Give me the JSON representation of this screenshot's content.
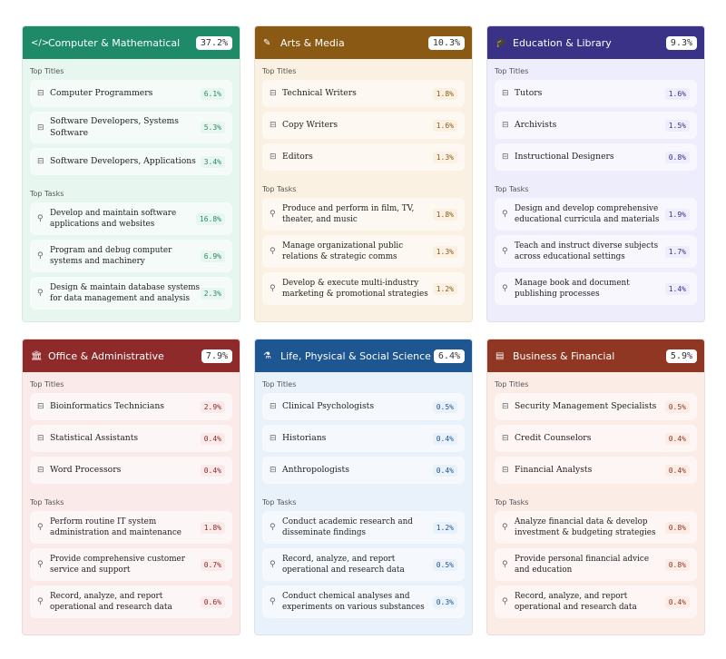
{
  "labels": {
    "titles": "Top Titles",
    "tasks": "Top Tasks"
  },
  "cards": [
    {
      "name": "Computer & Mathematical",
      "pct": "37.2%",
      "icon": "code-icon",
      "glyph": "</>",
      "color": "#1e8a68",
      "bg": "#e8f6f0",
      "val": "#2a8a6a",
      "titles": [
        {
          "l": "Computer Programmers",
          "v": "6.1%"
        },
        {
          "l": "Software Developers, Systems Software",
          "v": "5.3%"
        },
        {
          "l": "Software Developers, Applications",
          "v": "3.4%"
        }
      ],
      "tasks": [
        {
          "l": "Develop and maintain software applications and websites",
          "v": "16.8%"
        },
        {
          "l": "Program and debug computer systems and machinery",
          "v": "6.9%"
        },
        {
          "l": "Design & maintain database systems for data management and analysis",
          "v": "2.3%"
        }
      ]
    },
    {
      "name": "Arts & Media",
      "pct": "10.3%",
      "icon": "brush-icon",
      "glyph": "✎",
      "color": "#8a5a14",
      "bg": "#fbf1e2",
      "val": "#8a5a14",
      "titles": [
        {
          "l": "Technical Writers",
          "v": "1.8%"
        },
        {
          "l": "Copy Writers",
          "v": "1.6%"
        },
        {
          "l": "Editors",
          "v": "1.3%"
        }
      ],
      "tasks": [
        {
          "l": "Produce and perform in film, TV, theater, and music",
          "v": "1.8%"
        },
        {
          "l": "Manage organizational public relations & strategic comms",
          "v": "1.3%"
        },
        {
          "l": "Develop & execute multi-industry marketing & promotional strategies",
          "v": "1.2%"
        }
      ]
    },
    {
      "name": "Education & Library",
      "pct": "9.3%",
      "icon": "graduation-cap-icon",
      "glyph": "🎓",
      "color": "#393287",
      "bg": "#eeedfb",
      "val": "#393287",
      "titles": [
        {
          "l": "Tutors",
          "v": "1.6%"
        },
        {
          "l": "Archivists",
          "v": "1.5%"
        },
        {
          "l": "Instructional Designers",
          "v": "0.8%"
        }
      ],
      "tasks": [
        {
          "l": "Design and develop comprehensive educational curricula and materials",
          "v": "1.9%"
        },
        {
          "l": "Teach and instruct diverse subjects across educational settings",
          "v": "1.7%"
        },
        {
          "l": "Manage book and document publishing processes",
          "v": "1.4%"
        }
      ]
    },
    {
      "name": "Office & Administrative",
      "pct": "7.9%",
      "icon": "building-icon",
      "glyph": "🏛",
      "color": "#8e2a2a",
      "bg": "#fbeaea",
      "val": "#8e2a2a",
      "titles": [
        {
          "l": "Bioinformatics Technicians",
          "v": "2.9%"
        },
        {
          "l": "Statistical Assistants",
          "v": "0.4%"
        },
        {
          "l": "Word Processors",
          "v": "0.4%"
        }
      ],
      "tasks": [
        {
          "l": "Perform routine IT system administration and maintenance",
          "v": "1.8%"
        },
        {
          "l": "Provide comprehensive customer service and support",
          "v": "0.7%"
        },
        {
          "l": "Record, analyze, and report operational and research data",
          "v": "0.6%"
        }
      ]
    },
    {
      "name": "Life, Physical & Social Science",
      "pct": "6.4%",
      "icon": "flask-icon",
      "glyph": "⚗",
      "color": "#1d5690",
      "bg": "#e9f2fb",
      "val": "#1d5690",
      "titles": [
        {
          "l": "Clinical Psychologists",
          "v": "0.5%"
        },
        {
          "l": "Historians",
          "v": "0.4%"
        },
        {
          "l": "Anthropologists",
          "v": "0.4%"
        }
      ],
      "tasks": [
        {
          "l": "Conduct academic research and disseminate findings",
          "v": "1.2%"
        },
        {
          "l": "Record, analyze, and report operational and research data",
          "v": "0.5%"
        },
        {
          "l": "Conduct chemical analyses and experiments on various substances",
          "v": "0.3%"
        }
      ]
    },
    {
      "name": "Business & Financial",
      "pct": "5.9%",
      "icon": "wallet-icon",
      "glyph": "▤",
      "color": "#8f3722",
      "bg": "#fbece6",
      "val": "#8f3722",
      "titles": [
        {
          "l": "Security Management Specialists",
          "v": "0.5%"
        },
        {
          "l": "Credit Counselors",
          "v": "0.4%"
        },
        {
          "l": "Financial Analysts",
          "v": "0.4%"
        }
      ],
      "tasks": [
        {
          "l": "Analyze financial data & develop investment & budgeting strategies",
          "v": "0.8%"
        },
        {
          "l": "Provide personal financial advice and education",
          "v": "0.8%"
        },
        {
          "l": "Record, analyze, and report operational and research data",
          "v": "0.4%"
        }
      ]
    }
  ]
}
